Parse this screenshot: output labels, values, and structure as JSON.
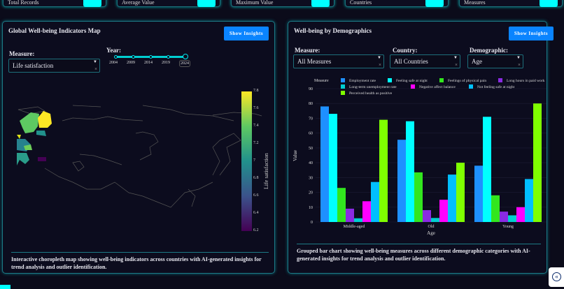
{
  "summary_cards": [
    "Total Records",
    "Average Value",
    "Maximum Value",
    "Countries",
    "Measures"
  ],
  "map_panel": {
    "title": "Global Well-being Indicators Map",
    "insights_button": "Show Insights",
    "measure_label": "Measure:",
    "measure_value": "Life satisfaction",
    "clear": "×",
    "year_label": "Year:",
    "years": [
      "2004",
      "2009",
      "2014",
      "2019",
      "2024"
    ],
    "selected_year": "2024",
    "colorbar": {
      "title": "Life satisfaction",
      "ticks": [
        "7.8",
        "7.6",
        "7.4",
        "7.2",
        "7",
        "6.8",
        "6.6",
        "6.4",
        "6.2"
      ],
      "range": [
        6.2,
        7.8
      ],
      "colorscale": "viridis"
    },
    "description": "Interactive choropleth map showing well-being indicators across countries with AI-generated insights for trend analysis and outlier identification."
  },
  "demo_panel": {
    "title": "Well-being by Demographics",
    "insights_button": "Show Insights",
    "measure_label": "Measure:",
    "measure_value": "All Measures",
    "country_label": "Country:",
    "country_value": "All Countries",
    "demographic_label": "Demographic:",
    "demographic_value": "Age",
    "clear": "×",
    "description": "Grouped bar chart showing well-being measures across different demographic categories with AI-generated insights for trend analysis and outlier identification."
  },
  "chart_data": {
    "type": "bar",
    "categories": [
      "Middle-aged",
      "Old",
      "Young"
    ],
    "xlabel": "Age",
    "ylabel": "Value",
    "ylim": [
      0,
      90
    ],
    "yticks": [
      0,
      10,
      20,
      30,
      40,
      50,
      60,
      70,
      80,
      90
    ],
    "legend_title": "Measure",
    "legend_position": "top",
    "series": [
      {
        "name": "Employment rate",
        "color": "#1e90ff",
        "values": [
          78,
          55.5,
          38
        ]
      },
      {
        "name": "Feeling safe at night",
        "color": "#00ffff",
        "values": [
          73,
          68,
          71
        ]
      },
      {
        "name": "Feelings of physical pain",
        "color": "#32e61e",
        "values": [
          23,
          33.5,
          18
        ]
      },
      {
        "name": "Long hours in paid work",
        "color": "#8a2be2",
        "values": [
          9,
          8,
          7
        ]
      },
      {
        "name": "Long-term unemployment rate",
        "color": "#00ced1",
        "values": [
          2.5,
          2.7,
          4.5
        ]
      },
      {
        "name": "Negative affect balance",
        "color": "#ff00ff",
        "values": [
          14,
          15,
          10
        ]
      },
      {
        "name": "Not feeling safe at night",
        "color": "#00bfff",
        "values": [
          27,
          32,
          29
        ]
      },
      {
        "name": "Perceived health as positive",
        "color": "#7fff00",
        "values": [
          69,
          40,
          80
        ]
      }
    ]
  }
}
